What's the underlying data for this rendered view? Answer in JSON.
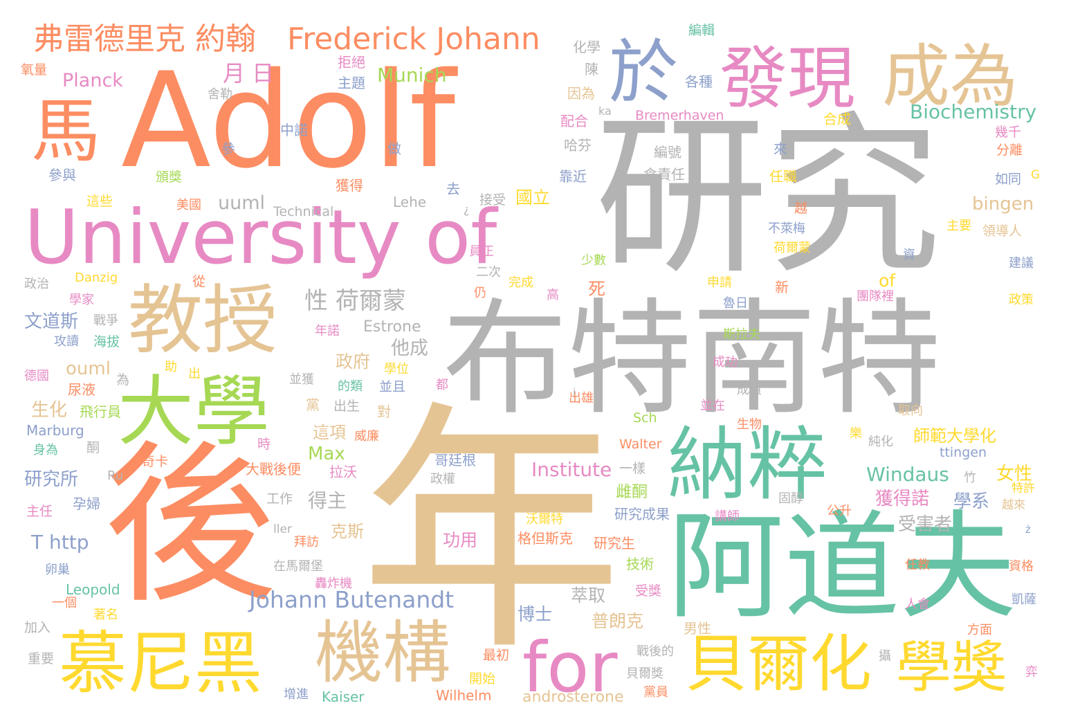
{
  "palette": {
    "orange": "#fc8d62",
    "gray": "#b3b3b3",
    "pink": "#e78ac3",
    "tan": "#e5c494",
    "teal": "#66c2a5",
    "green": "#a6d854",
    "blue": "#8da0cb",
    "yellow": "#ffd92f"
  },
  "words": [
    {
      "text": "Adolf",
      "color": "#fc8d62"
    },
    {
      "text": "研究",
      "color": "#b3b3b3"
    },
    {
      "text": "年",
      "color": "#e5c494"
    },
    {
      "text": "後",
      "color": "#fc8d62"
    },
    {
      "text": "布特南特",
      "color": "#b3b3b3"
    },
    {
      "text": "University of",
      "color": "#e78ac3"
    },
    {
      "text": "阿道夫",
      "color": "#66c2a5"
    },
    {
      "text": "教授",
      "color": "#e5c494"
    },
    {
      "text": "大學",
      "color": "#a6d854"
    },
    {
      "text": "納粹",
      "color": "#66c2a5"
    },
    {
      "text": "發現",
      "color": "#e78ac3"
    },
    {
      "text": "成為",
      "color": "#e5c494"
    },
    {
      "text": "於",
      "color": "#8da0cb"
    },
    {
      "text": "馬",
      "color": "#fc8d62"
    },
    {
      "text": "慕尼黑",
      "color": "#ffd92f"
    },
    {
      "text": "機構",
      "color": "#e5c494"
    },
    {
      "text": "for",
      "color": "#e78ac3"
    },
    {
      "text": "貝爾化",
      "color": "#ffd92f"
    },
    {
      "text": "學獎",
      "color": "#ffd92f"
    },
    {
      "text": "弗雷德里克 約翰",
      "color": "#fc8d62"
    },
    {
      "text": "Frederick Johann",
      "color": "#fc8d62"
    },
    {
      "text": "Johann Butenandt",
      "color": "#8da0cb"
    },
    {
      "text": "Biochemistry",
      "color": "#66c2a5"
    },
    {
      "text": "Munich",
      "color": "#a6d854"
    },
    {
      "text": "Planck",
      "color": "#e78ac3"
    },
    {
      "text": "月 日",
      "color": "#e78ac3"
    },
    {
      "text": "性 荷爾蒙",
      "color": "#b3b3b3"
    },
    {
      "text": "Institute",
      "color": "#e78ac3"
    },
    {
      "text": "Windaus",
      "color": "#66c2a5"
    },
    {
      "text": "uuml",
      "color": "#b3b3b3"
    },
    {
      "text": "ouml",
      "color": "#e5c494"
    },
    {
      "text": "bingen",
      "color": "#e5c494"
    },
    {
      "text": "T http",
      "color": "#8da0cb"
    },
    {
      "text": "Max",
      "color": "#a6d854"
    },
    {
      "text": "Estrone",
      "color": "#b3b3b3"
    },
    {
      "text": "androsterone",
      "color": "#e5c494"
    },
    {
      "text": "Kaiser",
      "color": "#66c2a5"
    },
    {
      "text": "Wilhelm",
      "color": "#fc8d62"
    },
    {
      "text": "Leopold",
      "color": "#66c2a5"
    },
    {
      "text": "Marburg",
      "color": "#8da0cb"
    },
    {
      "text": "Danzig",
      "color": "#ffd92f"
    },
    {
      "text": "Technical",
      "color": "#b3b3b3"
    },
    {
      "text": "Lehe",
      "color": "#b3b3b3"
    },
    {
      "text": "Bremerhaven",
      "color": "#e78ac3"
    },
    {
      "text": "ttingen",
      "color": "#8da0cb"
    },
    {
      "text": "Walter",
      "color": "#fc8d62"
    },
    {
      "text": "Sch",
      "color": "#a6d854"
    },
    {
      "text": "Ru",
      "color": "#b3b3b3"
    },
    {
      "text": "ller",
      "color": "#b3b3b3"
    },
    {
      "text": "ka",
      "color": "#b3b3b3"
    },
    {
      "text": "of",
      "color": "#ffd92f"
    },
    {
      "text": "G",
      "color": "#ffd92f"
    },
    {
      "text": "獲得諾",
      "color": "#e78ac3"
    },
    {
      "text": "學系",
      "color": "#8da0cb"
    },
    {
      "text": "師範大學化",
      "color": "#ffd92f"
    },
    {
      "text": "受害者",
      "color": "#b3b3b3"
    },
    {
      "text": "女性",
      "color": "#ffd92f"
    },
    {
      "text": "一樣",
      "color": "#b3b3b3"
    },
    {
      "text": "文道斯",
      "color": "#8da0cb"
    },
    {
      "text": "研究所",
      "color": "#8da0cb"
    },
    {
      "text": "生化",
      "color": "#e5c494"
    },
    {
      "text": "飛行員",
      "color": "#a6d854"
    },
    {
      "text": "尿液",
      "color": "#fc8d62"
    },
    {
      "text": "他成",
      "color": "#b3b3b3"
    },
    {
      "text": "政府",
      "color": "#e5c494"
    },
    {
      "text": "得主",
      "color": "#b3b3b3"
    },
    {
      "text": "克斯",
      "color": "#e5c494"
    },
    {
      "text": "萃取",
      "color": "#b3b3b3"
    },
    {
      "text": "博士",
      "color": "#8da0cb"
    },
    {
      "text": "普朗克",
      "color": "#e5c494"
    },
    {
      "text": "功用",
      "color": "#e78ac3"
    },
    {
      "text": "這項",
      "color": "#e5c494"
    },
    {
      "text": "雌酮",
      "color": "#a6d854"
    },
    {
      "text": "研究成果",
      "color": "#8da0cb"
    },
    {
      "text": "研究生",
      "color": "#fc8d62"
    },
    {
      "text": "格但斯克",
      "color": "#fc8d62"
    },
    {
      "text": "沃爾特",
      "color": "#ffd92f"
    },
    {
      "text": "大戰後便",
      "color": "#fc8d62"
    },
    {
      "text": "拉沃",
      "color": "#e78ac3"
    },
    {
      "text": "哥廷根",
      "color": "#8da0cb"
    },
    {
      "text": "政權",
      "color": "#b3b3b3"
    },
    {
      "text": "國立",
      "color": "#ffd92f"
    },
    {
      "text": "接受",
      "color": "#b3b3b3"
    },
    {
      "text": "化學",
      "color": "#b3b3b3"
    },
    {
      "text": "拒絕",
      "color": "#e78ac3"
    },
    {
      "text": "主題",
      "color": "#8da0cb"
    },
    {
      "text": "氧量",
      "color": "#fc8d62"
    },
    {
      "text": "舍勒",
      "color": "#b3b3b3"
    },
    {
      "text": "中諾",
      "color": "#8da0cb"
    },
    {
      "text": "參",
      "color": "#8da0cb"
    },
    {
      "text": "做",
      "color": "#8da0cb"
    },
    {
      "text": "參與",
      "color": "#8da0cb"
    },
    {
      "text": "頒獎",
      "color": "#a6d854"
    },
    {
      "text": "這些",
      "color": "#ffd92f"
    },
    {
      "text": "美國",
      "color": "#fc8d62"
    },
    {
      "text": "獲得",
      "color": "#fc8d62"
    },
    {
      "text": "去",
      "color": "#8da0cb"
    },
    {
      "text": "靠近",
      "color": "#8da0cb"
    },
    {
      "text": "陳",
      "color": "#b3b3b3"
    },
    {
      "text": "因為",
      "color": "#e5c494"
    },
    {
      "text": "配合",
      "color": "#e78ac3"
    },
    {
      "text": "哈芬",
      "color": "#b3b3b3"
    },
    {
      "text": "來",
      "color": "#8da0cb"
    },
    {
      "text": "編號",
      "color": "#b3b3b3"
    },
    {
      "text": "倉責任",
      "color": "#b3b3b3"
    },
    {
      "text": "各種",
      "color": "#8da0cb"
    },
    {
      "text": "編輯",
      "color": "#66c2a5"
    },
    {
      "text": "合成",
      "color": "#ffd92f"
    },
    {
      "text": "幾千",
      "color": "#e78ac3"
    },
    {
      "text": "分離",
      "color": "#fc8d62"
    },
    {
      "text": "如同",
      "color": "#8da0cb"
    },
    {
      "text": "任職",
      "color": "#ffd92f"
    },
    {
      "text": "越",
      "color": "#fc8d62"
    },
    {
      "text": "主要",
      "color": "#ffd92f"
    },
    {
      "text": "領導人",
      "color": "#e5c494"
    },
    {
      "text": "不萊梅",
      "color": "#8da0cb"
    },
    {
      "text": "荷爾蒙",
      "color": "#ffd92f"
    },
    {
      "text": "資",
      "color": "#8da0cb"
    },
    {
      "text": "建議",
      "color": "#8da0cb"
    },
    {
      "text": "少數",
      "color": "#a6d854"
    },
    {
      "text": "員正",
      "color": "#e78ac3"
    },
    {
      "text": "二次",
      "color": "#b3b3b3"
    },
    {
      "text": "完成",
      "color": "#ffd92f"
    },
    {
      "text": "高",
      "color": "#e78ac3"
    },
    {
      "text": "仍",
      "color": "#fc8d62"
    },
    {
      "text": "死",
      "color": "#fc8d62"
    },
    {
      "text": "申請",
      "color": "#ffd92f"
    },
    {
      "text": "新",
      "color": "#fc8d62"
    },
    {
      "text": "團隊裡",
      "color": "#e78ac3"
    },
    {
      "text": "政策",
      "color": "#ffd92f"
    },
    {
      "text": "魯日",
      "color": "#8da0cb"
    },
    {
      "text": "斯拉夫",
      "color": "#a6d854"
    },
    {
      "text": "成功",
      "color": "#e78ac3"
    },
    {
      "text": "成員",
      "color": "#b3b3b3"
    },
    {
      "text": "並在",
      "color": "#e78ac3"
    },
    {
      "text": "生物",
      "color": "#fc8d62"
    },
    {
      "text": "取向",
      "color": "#e5c494"
    },
    {
      "text": "樂",
      "color": "#ffd92f"
    },
    {
      "text": "純化",
      "color": "#b3b3b3"
    },
    {
      "text": "竹",
      "color": "#b3b3b3"
    },
    {
      "text": "特許",
      "color": "#ffd92f"
    },
    {
      "text": "越來",
      "color": "#e5c494"
    },
    {
      "text": "ż",
      "color": "#8da0cb"
    },
    {
      "text": "公升",
      "color": "#fc8d62"
    },
    {
      "text": "固醇",
      "color": "#b3b3b3"
    },
    {
      "text": "講師",
      "color": "#e78ac3"
    },
    {
      "text": "任教",
      "color": "#fc8d62"
    },
    {
      "text": "資格",
      "color": "#fc8d62"
    },
    {
      "text": "凱薩",
      "color": "#8da0cb"
    },
    {
      "text": "人會",
      "color": "#e78ac3"
    },
    {
      "text": "方面",
      "color": "#fc8d62"
    },
    {
      "text": "男性",
      "color": "#e5c494"
    },
    {
      "text": "弈",
      "color": "#e78ac3"
    },
    {
      "text": "攝",
      "color": "#b3b3b3"
    },
    {
      "text": "技術",
      "color": "#a6d854"
    },
    {
      "text": "受獎",
      "color": "#e78ac3"
    },
    {
      "text": "戰後的",
      "color": "#b3b3b3"
    },
    {
      "text": "貝爾獎",
      "color": "#b3b3b3"
    },
    {
      "text": "黨員",
      "color": "#fc8d62"
    },
    {
      "text": "最初",
      "color": "#fc8d62"
    },
    {
      "text": "開始",
      "color": "#ffd92f"
    },
    {
      "text": "增進",
      "color": "#8da0cb"
    },
    {
      "text": "在馬爾堡",
      "color": "#b3b3b3"
    },
    {
      "text": "轟炸機",
      "color": "#e78ac3"
    },
    {
      "text": "拜訪",
      "color": "#fc8d62"
    },
    {
      "text": "工作",
      "color": "#b3b3b3"
    },
    {
      "text": "卵巢",
      "color": "#8da0cb"
    },
    {
      "text": "一個",
      "color": "#fc8d62"
    },
    {
      "text": "著名",
      "color": "#ffd92f"
    },
    {
      "text": "加入",
      "color": "#b3b3b3"
    },
    {
      "text": "重要",
      "color": "#b3b3b3"
    },
    {
      "text": "主任",
      "color": "#e78ac3"
    },
    {
      "text": "孕婦",
      "color": "#8da0cb"
    },
    {
      "text": "奇卡",
      "color": "#fc8d62"
    },
    {
      "text": "身為",
      "color": "#66c2a5"
    },
    {
      "text": "酮",
      "color": "#b3b3b3"
    },
    {
      "text": "時",
      "color": "#e78ac3"
    },
    {
      "text": "威廉",
      "color": "#fc8d62"
    },
    {
      "text": "出生",
      "color": "#b3b3b3"
    },
    {
      "text": "對",
      "color": "#e5c494"
    },
    {
      "text": "黨",
      "color": "#e5c494"
    },
    {
      "text": "都",
      "color": "#e78ac3"
    },
    {
      "text": "出雄",
      "color": "#fc8d62"
    },
    {
      "text": "的類",
      "color": "#66c2a5"
    },
    {
      "text": "並且",
      "color": "#8da0cb"
    },
    {
      "text": "並獲",
      "color": "#b3b3b3"
    },
    {
      "text": "學位",
      "color": "#ffd92f"
    },
    {
      "text": "年諾",
      "color": "#e78ac3"
    },
    {
      "text": "為",
      "color": "#b3b3b3"
    },
    {
      "text": "助",
      "color": "#ffd92f"
    },
    {
      "text": "出",
      "color": "#ffd92f"
    },
    {
      "text": "德國",
      "color": "#e78ac3"
    },
    {
      "text": "戰爭",
      "color": "#b3b3b3"
    },
    {
      "text": "攻讀",
      "color": "#8da0cb"
    },
    {
      "text": "海拔",
      "color": "#66c2a5"
    },
    {
      "text": "學家",
      "color": "#e78ac3"
    },
    {
      "text": "從",
      "color": "#fc8d62"
    },
    {
      "text": "政治",
      "color": "#b3b3b3"
    },
    {
      "text": "¿",
      "color": "#b3b3b3"
    },
    {
      "text": "i",
      "color": "#b3b3b3"
    }
  ]
}
